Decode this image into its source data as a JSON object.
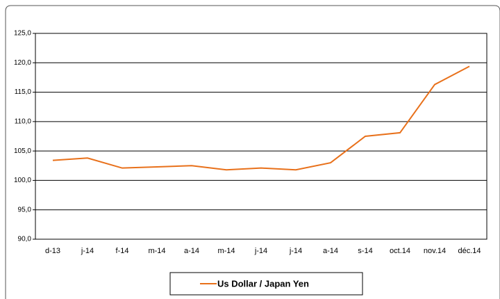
{
  "chart_data": {
    "type": "line",
    "categories": [
      "d-13",
      "j-14",
      "f-14",
      "m-14",
      "a-14",
      "m-14",
      "j-14",
      "j-14",
      "a-14",
      "s-14",
      "oct.14",
      "nov.14",
      "déc.14"
    ],
    "series": [
      {
        "name": "Us Dollar / Japan Yen",
        "color": "#e8701a",
        "values": [
          103.4,
          103.8,
          102.1,
          102.3,
          102.5,
          101.8,
          102.1,
          101.8,
          103.0,
          107.5,
          108.1,
          116.3,
          119.4
        ]
      }
    ],
    "ylim": [
      90,
      125
    ],
    "yticks": [
      {
        "value": 90,
        "label": "90,0"
      },
      {
        "value": 95,
        "label": "95,0"
      },
      {
        "value": 100,
        "label": "100,0"
      },
      {
        "value": 105,
        "label": "105,0"
      },
      {
        "value": 110,
        "label": "110,0"
      },
      {
        "value": 115,
        "label": "115,0"
      },
      {
        "value": 120,
        "label": "120,0"
      },
      {
        "value": 125,
        "label": "125,0"
      }
    ],
    "grid": true
  }
}
